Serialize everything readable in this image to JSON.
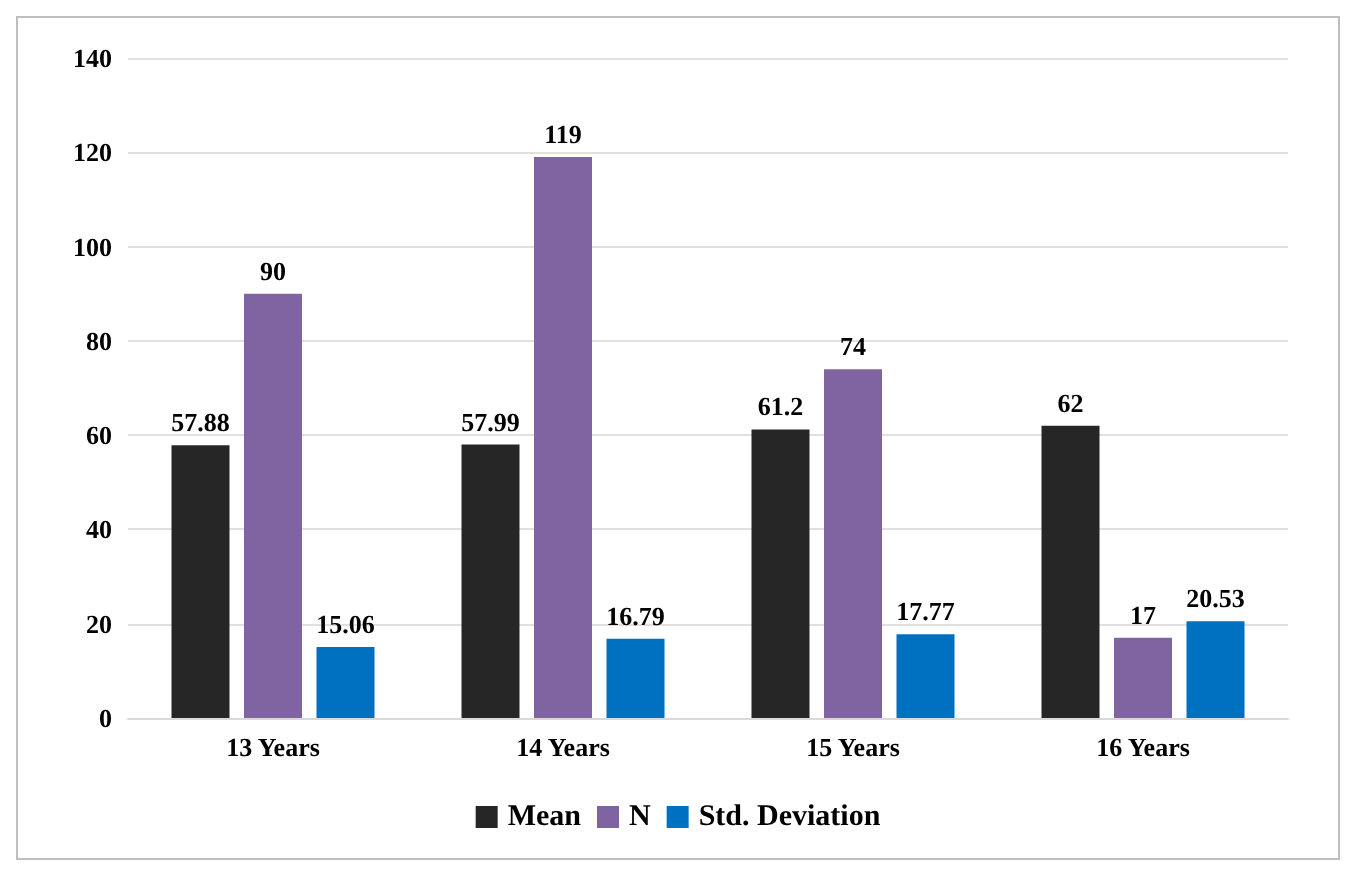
{
  "chart_data": {
    "type": "bar",
    "categories": [
      "13 Years",
      "14 Years",
      "15 Years",
      "16 Years"
    ],
    "series": [
      {
        "name": "Mean",
        "color": "#262626",
        "values": [
          57.88,
          57.99,
          61.2,
          62
        ]
      },
      {
        "name": "N",
        "color": "#8064a2",
        "values": [
          90,
          119,
          74,
          17
        ]
      },
      {
        "name": "Std. Deviation",
        "color": "#0070c0",
        "values": [
          15.06,
          16.79,
          17.77,
          20.53
        ]
      }
    ],
    "ylim": [
      0,
      140
    ],
    "yticks": [
      0,
      20,
      40,
      60,
      80,
      100,
      120,
      140
    ],
    "grid": "y",
    "legend": "bottom",
    "data_labels": true
  }
}
